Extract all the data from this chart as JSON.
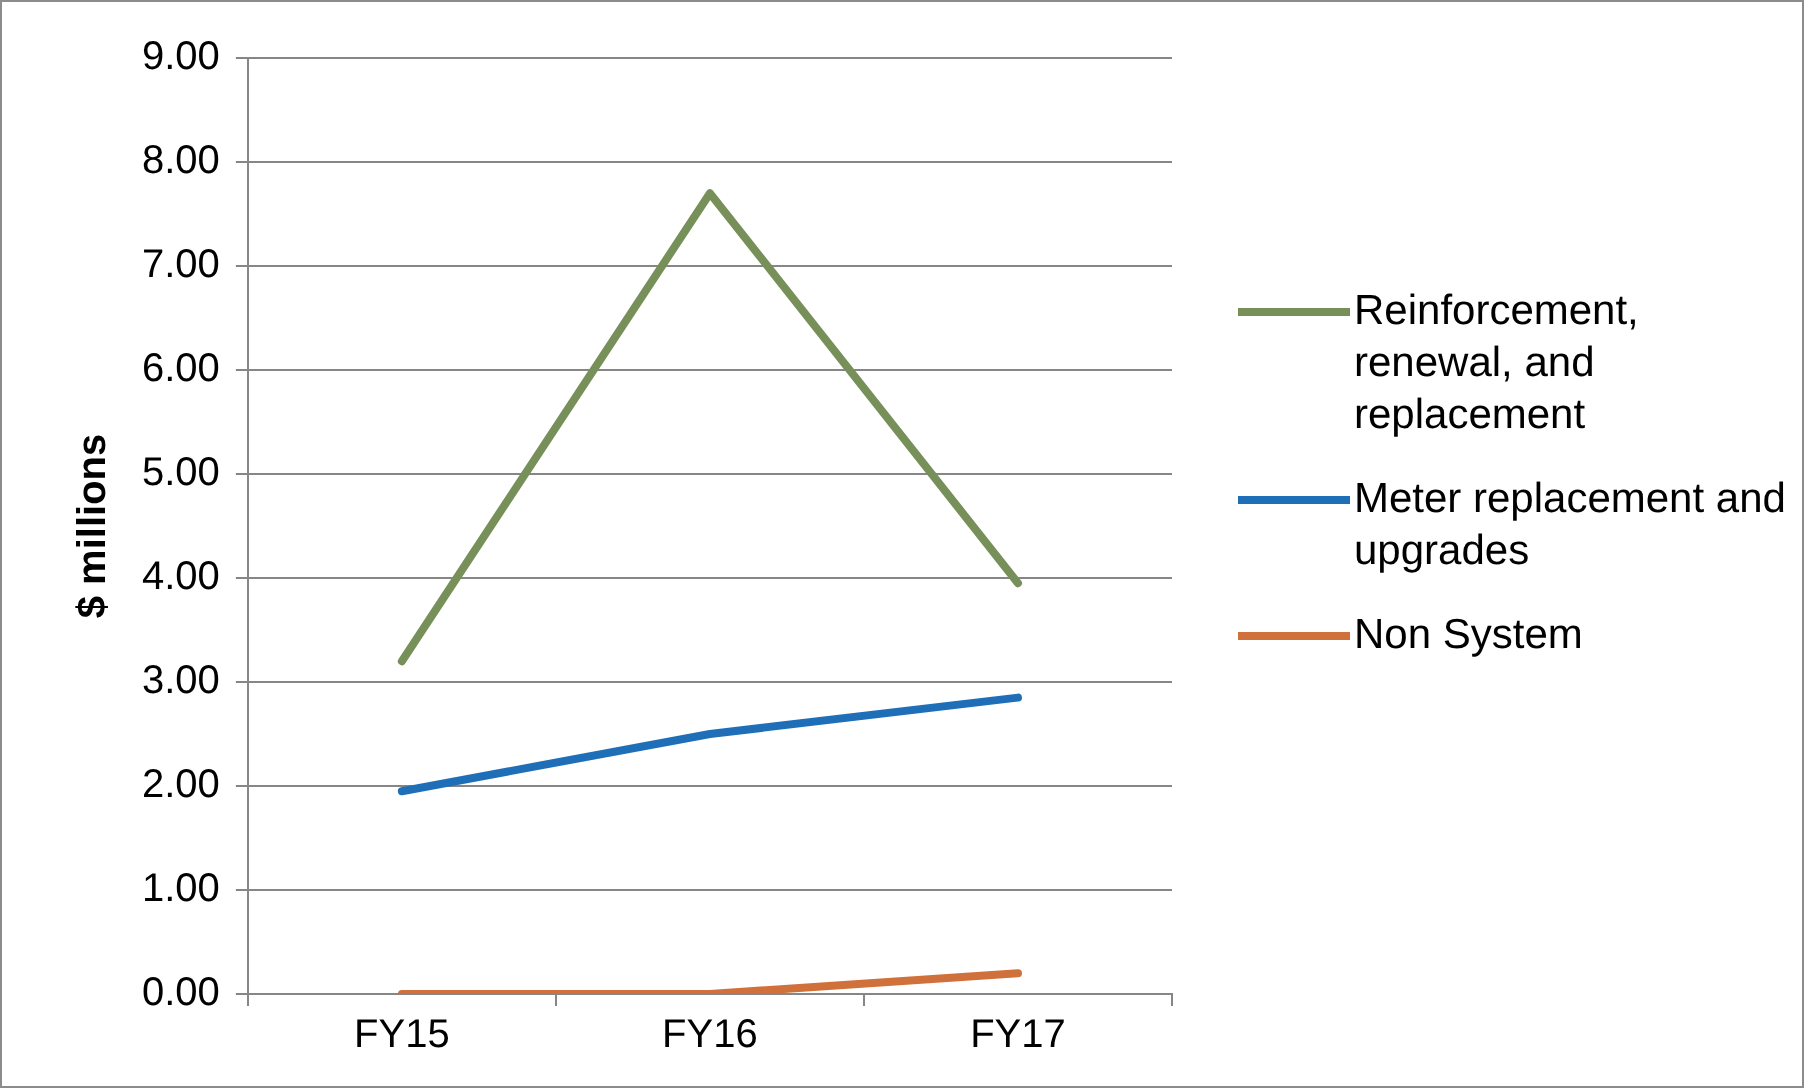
{
  "chart_data": {
    "type": "line",
    "ylabel": "$ millions",
    "categories": [
      "FY15",
      "FY16",
      "FY17"
    ],
    "series": [
      {
        "name": "Reinforcement, renewal, and replacement",
        "color": "#77905a",
        "values": [
          3.2,
          7.7,
          3.95
        ]
      },
      {
        "name": "Meter replacement and upgrades",
        "color": "#1f6eb8",
        "values": [
          1.95,
          2.5,
          2.85
        ]
      },
      {
        "name": "Non System",
        "color": "#d0703a",
        "values": [
          0,
          0,
          0.2
        ]
      }
    ],
    "ylim": [
      0,
      9
    ],
    "yticks": [
      {
        "value": 0,
        "label": "0.00"
      },
      {
        "value": 1,
        "label": "1.00"
      },
      {
        "value": 2,
        "label": "2.00"
      },
      {
        "value": 3,
        "label": "3.00"
      },
      {
        "value": 4,
        "label": "4.00"
      },
      {
        "value": 5,
        "label": "5.00"
      },
      {
        "value": 6,
        "label": "6.00"
      },
      {
        "value": 7,
        "label": "7.00"
      },
      {
        "value": 8,
        "label": "8.00"
      },
      {
        "value": 9,
        "label": "9.00"
      }
    ],
    "grid": "y",
    "legend": "right",
    "marker": "none",
    "line_style": "solid"
  }
}
